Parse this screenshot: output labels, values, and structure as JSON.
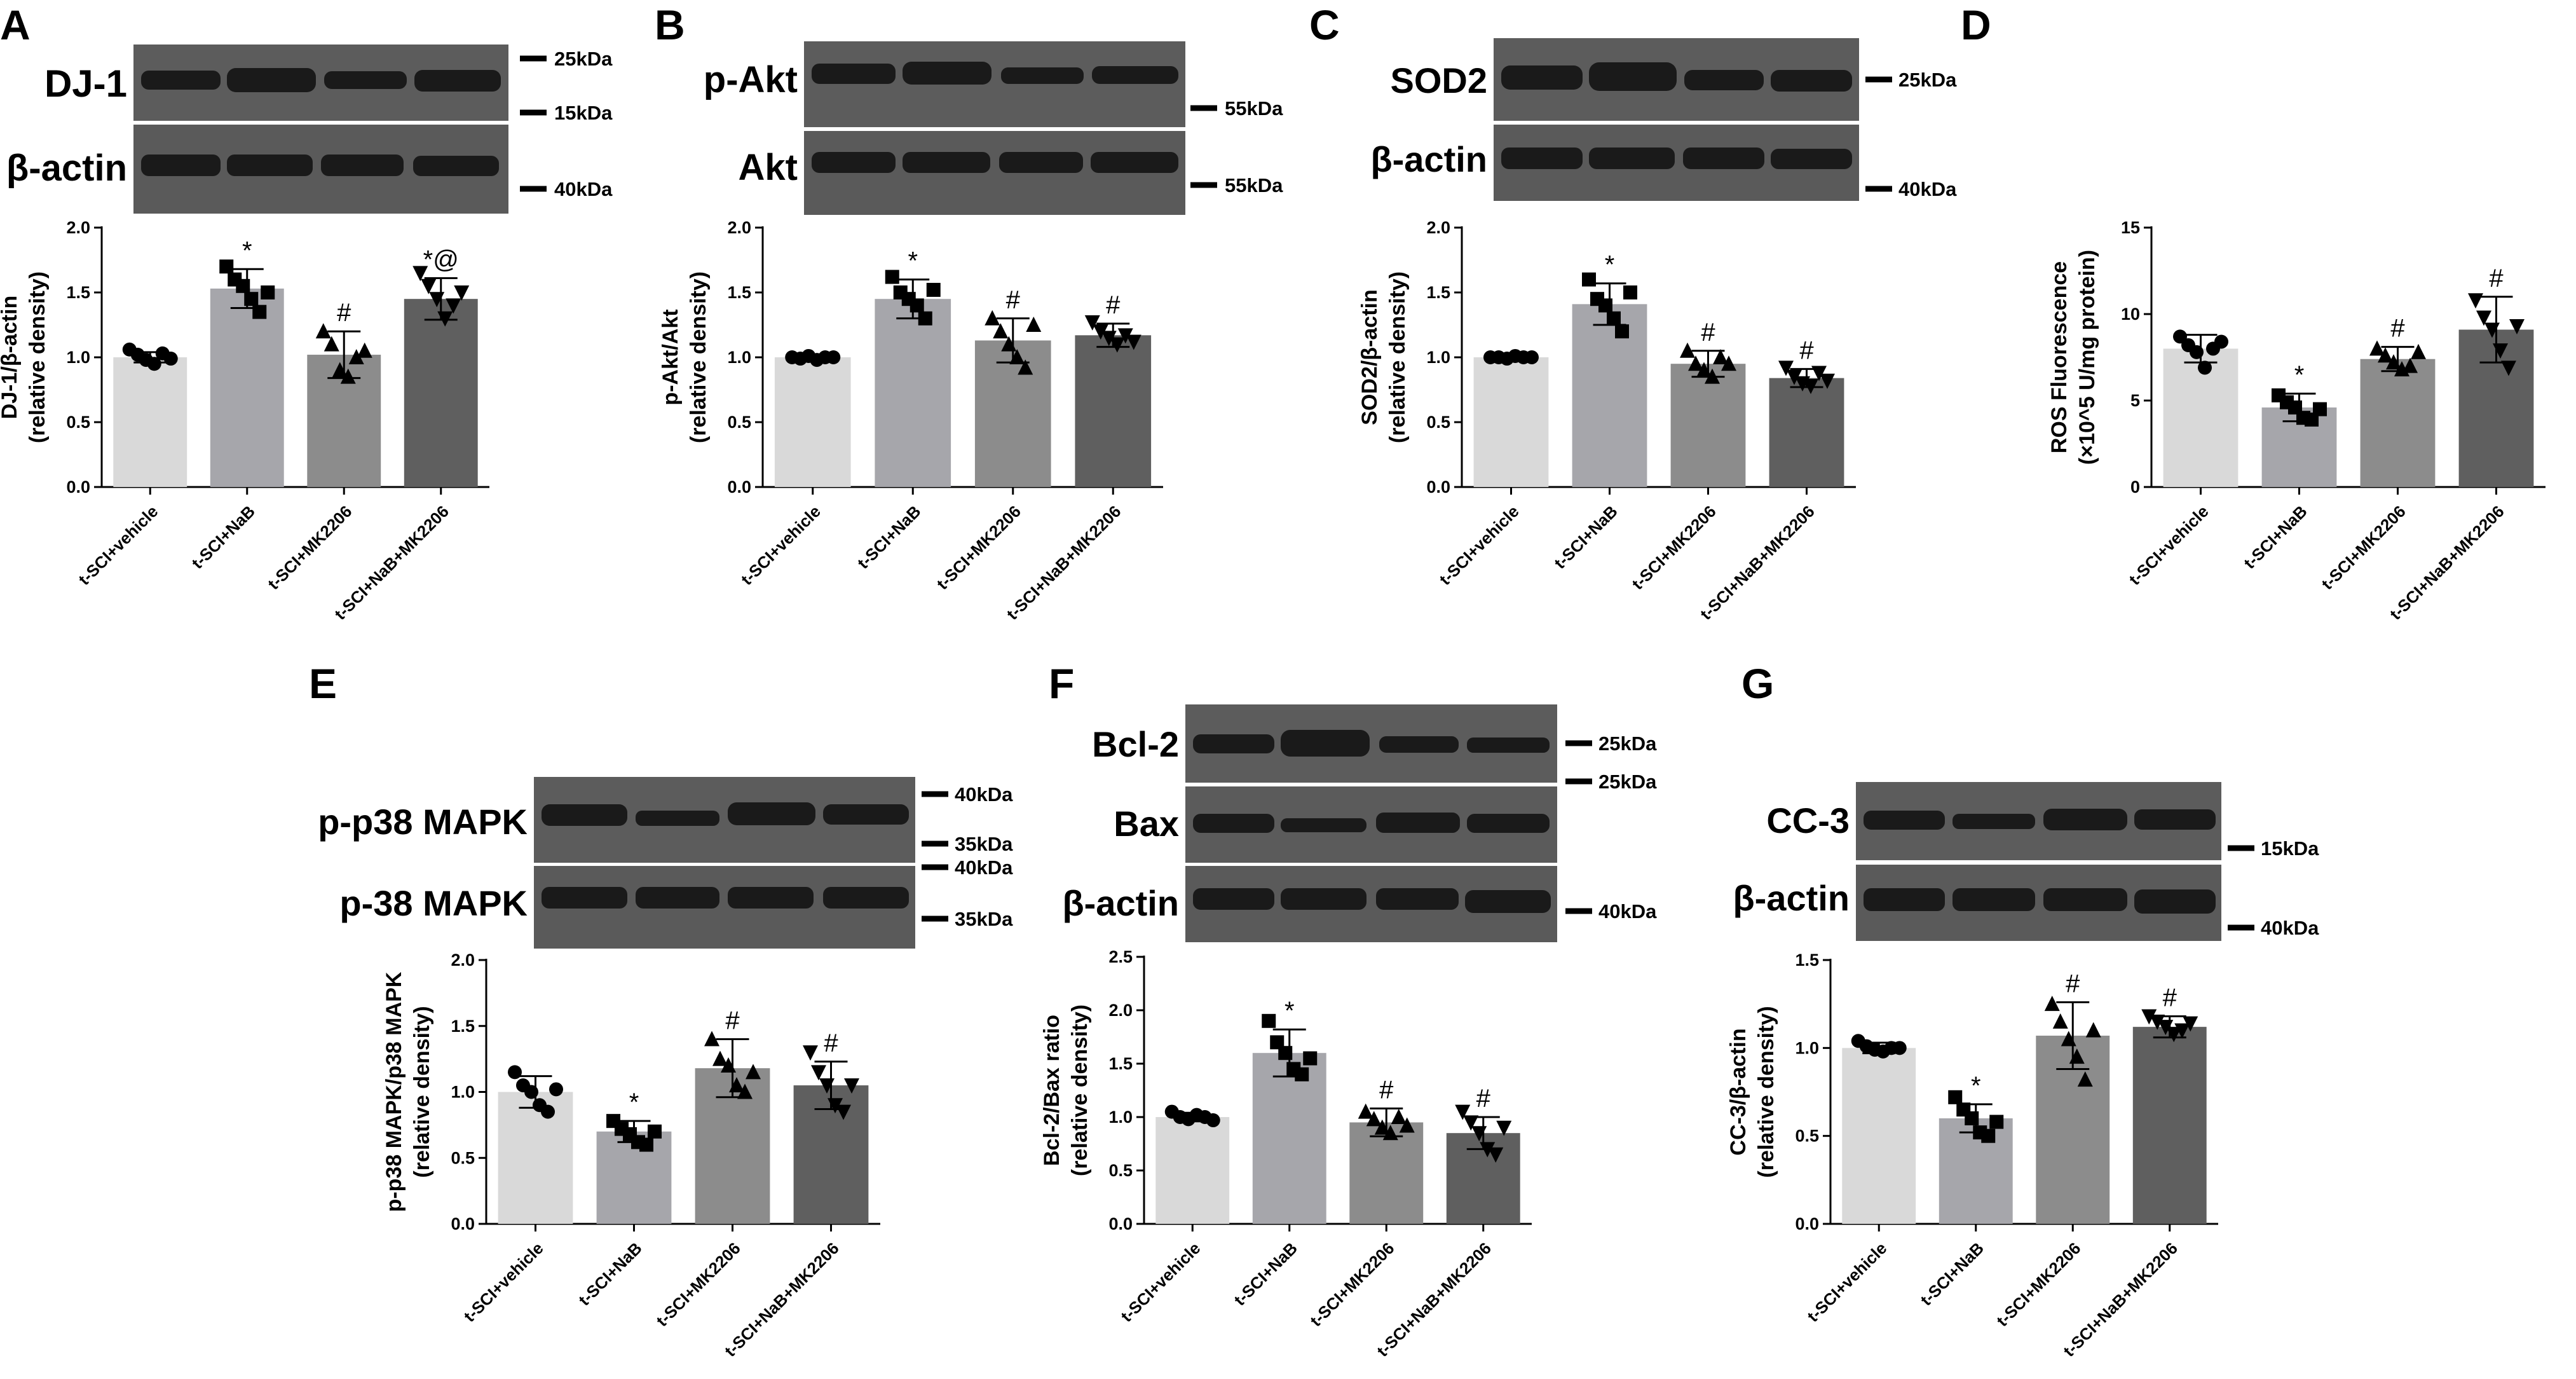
{
  "chart_data": [
    {
      "panel": "A",
      "type": "bar",
      "blots": [
        {
          "label": "DJ-1"
        },
        {
          "label": "β-actin"
        }
      ],
      "markers": [
        "25kDa",
        "15kDa",
        "40kDa"
      ],
      "ylabel": "DJ-1/β-actin",
      "ylabel2": "(relative density)",
      "ylim": [
        0,
        2.0
      ],
      "yticks": [
        "0.0",
        "0.5",
        "1.0",
        "1.5",
        "2.0"
      ],
      "categories": [
        "t-SCI+vehicle",
        "t-SCI+NaB",
        "t-SCI+MK2206",
        "t-SCI+NaB+MK2206"
      ],
      "values": [
        1.0,
        1.53,
        1.02,
        1.45
      ],
      "errors": [
        0.04,
        0.15,
        0.18,
        0.16
      ],
      "significance": [
        "",
        "*",
        "#",
        "*@"
      ],
      "points": [
        [
          1.06,
          1.02,
          0.98,
          0.95,
          1.03,
          0.99
        ],
        [
          1.7,
          1.6,
          1.55,
          1.45,
          1.35,
          1.5
        ],
        [
          1.2,
          1.1,
          0.9,
          0.85,
          1.0,
          1.05
        ],
        [
          1.65,
          1.55,
          1.45,
          1.3,
          1.4,
          1.5
        ]
      ],
      "colors": [
        "#d9d9d9",
        "#a6a6ab",
        "#8c8c8c",
        "#5f5f5f"
      ]
    },
    {
      "panel": "B",
      "type": "bar",
      "blots": [
        {
          "label": "p-Akt"
        },
        {
          "label": "Akt"
        }
      ],
      "markers": [
        "55kDa",
        "55kDa"
      ],
      "ylabel": "p-Akt/Akt",
      "ylabel2": "(relative density)",
      "ylim": [
        0,
        2.0
      ],
      "yticks": [
        "0.0",
        "0.5",
        "1.0",
        "1.5",
        "2.0"
      ],
      "categories": [
        "t-SCI+vehicle",
        "t-SCI+NaB",
        "t-SCI+MK2206",
        "t-SCI+NaB+MK2206"
      ],
      "values": [
        1.0,
        1.45,
        1.13,
        1.17
      ],
      "errors": [
        0.02,
        0.15,
        0.17,
        0.09
      ],
      "significance": [
        "",
        "*",
        "#",
        "#"
      ],
      "points": [
        [
          1.0,
          0.99,
          1.01,
          0.98,
          1.0,
          1.0
        ],
        [
          1.62,
          1.5,
          1.45,
          1.4,
          1.3,
          1.52
        ],
        [
          1.3,
          1.2,
          1.1,
          1.0,
          0.92,
          1.25
        ],
        [
          1.27,
          1.2,
          1.15,
          1.1,
          1.17,
          1.12
        ]
      ],
      "colors": [
        "#d9d9d9",
        "#a6a6ab",
        "#8c8c8c",
        "#5f5f5f"
      ]
    },
    {
      "panel": "C",
      "type": "bar",
      "blots": [
        {
          "label": "SOD2"
        },
        {
          "label": "β-actin"
        }
      ],
      "markers": [
        "25kDa",
        "40kDa"
      ],
      "ylabel": "SOD2/β-actin",
      "ylabel2": "(relative density)",
      "ylim": [
        0,
        2.0
      ],
      "yticks": [
        "0.0",
        "0.5",
        "1.0",
        "1.5",
        "2.0"
      ],
      "categories": [
        "t-SCI+vehicle",
        "t-SCI+NaB",
        "t-SCI+MK2206",
        "t-SCI+NaB+MK2206"
      ],
      "values": [
        1.0,
        1.41,
        0.95,
        0.84
      ],
      "errors": [
        0.02,
        0.16,
        0.1,
        0.07
      ],
      "significance": [
        "",
        "*",
        "#",
        "#"
      ],
      "points": [
        [
          1.0,
          1.0,
          0.99,
          1.01,
          1.0,
          1.0
        ],
        [
          1.6,
          1.45,
          1.4,
          1.3,
          1.2,
          1.5
        ],
        [
          1.05,
          0.95,
          0.9,
          0.85,
          1.0,
          0.95
        ],
        [
          0.92,
          0.85,
          0.8,
          0.78,
          0.88,
          0.82
        ]
      ],
      "colors": [
        "#d9d9d9",
        "#a6a6ab",
        "#8c8c8c",
        "#5f5f5f"
      ]
    },
    {
      "panel": "D",
      "type": "bar",
      "blots": [],
      "markers": [],
      "ylabel": "ROS Fluorescence",
      "ylabel2": "(×10^5 U/mg protein)",
      "ylim": [
        0,
        15
      ],
      "yticks": [
        "0",
        "5",
        "10",
        "15"
      ],
      "categories": [
        "t-SCI+vehicle",
        "t-SCI+NaB",
        "t-SCI+MK2206",
        "t-SCI+NaB+MK2206"
      ],
      "values": [
        8.0,
        4.6,
        7.4,
        9.1
      ],
      "errors": [
        0.8,
        0.8,
        0.7,
        1.9
      ],
      "significance": [
        "",
        "*",
        "#",
        "#"
      ],
      "points": [
        [
          8.7,
          8.2,
          7.8,
          6.9,
          8.0,
          8.4
        ],
        [
          5.3,
          4.9,
          4.6,
          4.0,
          3.9,
          4.5
        ],
        [
          8.0,
          7.6,
          7.2,
          6.8,
          7.0,
          7.8
        ],
        [
          10.8,
          9.8,
          9.1,
          7.9,
          6.9,
          9.3
        ]
      ],
      "colors": [
        "#d9d9d9",
        "#a6a6ab",
        "#8c8c8c",
        "#5f5f5f"
      ]
    },
    {
      "panel": "E",
      "type": "bar",
      "blots": [
        {
          "label": "p-p38 MAPK"
        },
        {
          "label": "p-38 MAPK"
        }
      ],
      "markers": [
        "40kDa",
        "35kDa",
        "40kDa",
        "35kDa"
      ],
      "ylabel": "p-p38 MAPK/p38 MAPK",
      "ylabel2": "(relative density)",
      "ylim": [
        0,
        2.0
      ],
      "yticks": [
        "0.0",
        "0.5",
        "1.0",
        "1.5",
        "2.0"
      ],
      "categories": [
        "t-SCI+vehicle",
        "t-SCI+NaB",
        "t-SCI+MK2206",
        "t-SCI+NaB+MK2206"
      ],
      "values": [
        1.0,
        0.7,
        1.18,
        1.05
      ],
      "errors": [
        0.12,
        0.08,
        0.22,
        0.18
      ],
      "significance": [
        "",
        "*",
        "#",
        "#"
      ],
      "points": [
        [
          1.15,
          1.05,
          1.0,
          0.9,
          0.85,
          1.02
        ],
        [
          0.78,
          0.72,
          0.68,
          0.62,
          0.6,
          0.7
        ],
        [
          1.4,
          1.25,
          1.2,
          1.05,
          1.0,
          1.15
        ],
        [
          1.3,
          1.15,
          1.05,
          0.9,
          0.85,
          1.05
        ]
      ],
      "colors": [
        "#d9d9d9",
        "#a6a6ab",
        "#8c8c8c",
        "#5f5f5f"
      ]
    },
    {
      "panel": "F",
      "type": "bar",
      "blots": [
        {
          "label": "Bcl-2"
        },
        {
          "label": "Bax"
        },
        {
          "label": "β-actin"
        }
      ],
      "markers": [
        "25kDa",
        "25kDa",
        "40kDa"
      ],
      "ylabel": "Bcl-2/Bax ratio",
      "ylabel2": "(relative density)",
      "ylim": [
        0,
        2.5
      ],
      "yticks": [
        "0.0",
        "0.5",
        "1.0",
        "1.5",
        "2.0",
        "2.5"
      ],
      "categories": [
        "t-SCI+vehicle",
        "t-SCI+NaB",
        "t-SCI+MK2206",
        "t-SCI+NaB+MK2206"
      ],
      "values": [
        1.0,
        1.6,
        0.95,
        0.85
      ],
      "errors": [
        0.04,
        0.22,
        0.13,
        0.15
      ],
      "significance": [
        "",
        "*",
        "#",
        "#"
      ],
      "points": [
        [
          1.05,
          1.0,
          0.98,
          1.02,
          1.0,
          0.97
        ],
        [
          1.9,
          1.7,
          1.6,
          1.45,
          1.4,
          1.55
        ],
        [
          1.05,
          0.98,
          0.9,
          0.85,
          1.0,
          0.92
        ],
        [
          1.05,
          0.95,
          0.85,
          0.7,
          0.65,
          0.9
        ]
      ],
      "colors": [
        "#d9d9d9",
        "#a6a6ab",
        "#8c8c8c",
        "#5f5f5f"
      ]
    },
    {
      "panel": "G",
      "type": "bar",
      "blots": [
        {
          "label": "CC-3"
        },
        {
          "label": "β-actin"
        }
      ],
      "markers": [
        "15kDa",
        "40kDa"
      ],
      "ylabel": "CC-3/β-actin",
      "ylabel2": "(relative density)",
      "ylim": [
        0,
        1.5
      ],
      "yticks": [
        "0.0",
        "0.5",
        "1.0",
        "1.5"
      ],
      "categories": [
        "t-SCI+vehicle",
        "t-SCI+NaB",
        "t-SCI+MK2206",
        "t-SCI+NaB+MK2206"
      ],
      "values": [
        1.0,
        0.6,
        1.07,
        1.12
      ],
      "errors": [
        0.03,
        0.08,
        0.19,
        0.06
      ],
      "significance": [
        "",
        "*",
        "#",
        "#"
      ],
      "points": [
        [
          1.04,
          1.01,
          0.99,
          0.98,
          1.0,
          1.0
        ],
        [
          0.72,
          0.65,
          0.6,
          0.52,
          0.5,
          0.58
        ],
        [
          1.25,
          1.15,
          1.05,
          0.95,
          0.82,
          1.1
        ],
        [
          1.18,
          1.15,
          1.12,
          1.08,
          1.1,
          1.14
        ]
      ],
      "colors": [
        "#d9d9d9",
        "#a6a6ab",
        "#8c8c8c",
        "#5f5f5f"
      ]
    }
  ]
}
